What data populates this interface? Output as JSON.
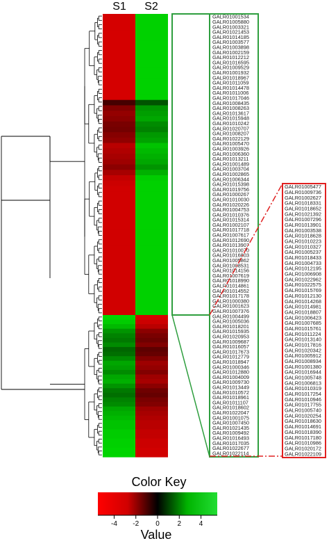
{
  "chart_data": {
    "type": "heatmap",
    "columns": [
      "S1",
      "S2"
    ],
    "series": [
      {
        "values": [
          -4.5,
          4.5
        ]
      },
      {
        "values": [
          -4.0,
          4.0
        ]
      }
    ],
    "legend": {
      "title": "Color Key",
      "xlabel": "Value",
      "ticks": [
        -4,
        -2,
        0,
        2,
        4
      ],
      "range": [
        -5.5,
        5.5
      ],
      "colors": {
        "low": "#ff0000",
        "mid": "#000000",
        "high": "#00ff00"
      }
    },
    "upper_cluster_genes": [
      "GALR01001534",
      "GALR01005880",
      "GALR01003321",
      "GALR01021453",
      "GALR01014185",
      "GALR01003577",
      "GALR01003898",
      "GALR01002159",
      "GALR01012212",
      "GALR01016595",
      "GALR01009529",
      "GALR01001932",
      "GALR01018967",
      "GALR01011059",
      "GALR01014478",
      "GALR01011006",
      "GALR01017046",
      "GALR01008435",
      "GALR01008263",
      "GALR01013617",
      "GALR01015948",
      "GALR01010242",
      "GALR01020707",
      "GALR01008207",
      "GALR01022129",
      "GALR01005470",
      "GALR01003926",
      "GALR01006360",
      "GALR01013211",
      "GALR01001489",
      "GALR01003704",
      "GALR01002865",
      "GALR01006344",
      "GALR01015398",
      "GALR01019756",
      "GALR01000267",
      "GALR01010030",
      "GALR01020226",
      "GALR01004753",
      "GALR01010376",
      "GALR01015314",
      "GALR01002107",
      "GALR01017718",
      "GALR01007617",
      "GALR01012690",
      "GALR01013907",
      "GALR01010070",
      "GALR01016803",
      "GALR01005862",
      "GALR01008531",
      "GALR01014156",
      "GALR01007619",
      "GALR01018990",
      "GALR01014861",
      "GALR01014552",
      "GALR01017178"
    ],
    "lower_cluster_genes": [
      "GALR01005477",
      "GALR01009736",
      "GALR01002627",
      "GALR01018331",
      "GALR01018652",
      "GALR01021392",
      "GALR01007296",
      "GALR01013901",
      "GALR01003538",
      "GALR01018628",
      "GALR01010223",
      "GALR01010327",
      "GALR01005237",
      "GALR01018433",
      "GALR01004733",
      "GALR01012195",
      "GALR01006908",
      "GALR01022962",
      "GALR01022575",
      "GALR01015769",
      "GALR01012130",
      "GALR01014268",
      "GALR01014981",
      "GALR01018807",
      "GALR01006423",
      "GALR01007685",
      "GALR01015761",
      "GALR01011224",
      "GALR01013140",
      "GALR01017816",
      "GALR01020342",
      "GALR01005912",
      "GALR01008934",
      "GALR01001380",
      "GALR01016944",
      "GALR01005748",
      "GALR01006813",
      "GALR01010319",
      "GALR01017254",
      "GALR01010946",
      "GALR01017755",
      "GALR01005740",
      "GALR01020254",
      "GALR01018630",
      "GALR01014691",
      "GALR01018390",
      "GALR01017180",
      "GALR01010986",
      "GALR01020172",
      "GALR01022109"
    ],
    "lower_cluster_row_labels": [
      "GALR01000380",
      "GALR01001623",
      "GALR01007376",
      "GALR01004499",
      "GALR01005036",
      "GALR01018201",
      "GALR01015935",
      "GALR01020953",
      "GALR01009687",
      "GALR01016057",
      "GALR01017673",
      "GALR01012779",
      "GALR01018947",
      "GALR01000346",
      "GALR01012880",
      "GALR01004009",
      "GALR01009730",
      "GALR01013449",
      "GALR01010572",
      "GALR01018961",
      "GALR01011107",
      "GALR01018602",
      "GALR01022047",
      "GALR01001075",
      "GALR01007450",
      "GALR01021435",
      "GALR01009492",
      "GALR01016493",
      "GALR01017035",
      "GALR01022677",
      "GALR01022114"
    ],
    "upper_cluster_row_values": [
      [
        -4.6,
        4.5
      ],
      [
        -4.6,
        4.5
      ],
      [
        -4.6,
        4.5
      ],
      [
        -4.6,
        4.5
      ],
      [
        -4.6,
        4.5
      ],
      [
        -4.6,
        4.5
      ],
      [
        -4.6,
        4.5
      ],
      [
        -4.6,
        4.5
      ],
      [
        -4.6,
        4.5
      ],
      [
        -4.6,
        4.5
      ],
      [
        -4.6,
        4.5
      ],
      [
        -4.6,
        4.5
      ],
      [
        -4.6,
        4.5
      ],
      [
        -4.6,
        4.5
      ],
      [
        -4.6,
        4.5
      ],
      [
        -4.6,
        4.5
      ],
      [
        -1.5,
        1.8
      ],
      [
        -2.8,
        3.2
      ],
      [
        -3.2,
        3.4
      ],
      [
        -3.0,
        3.6
      ],
      [
        -2.6,
        3.0
      ],
      [
        -2.5,
        2.8
      ],
      [
        -2.9,
        3.3
      ],
      [
        -3.1,
        3.5
      ],
      [
        -4.0,
        4.2
      ],
      [
        -3.8,
        4.0
      ],
      [
        -3.6,
        3.8
      ],
      [
        -3.4,
        3.6
      ],
      [
        -3.0,
        3.2
      ],
      [
        -3.6,
        3.8
      ],
      [
        -4.2,
        4.4
      ],
      [
        -4.4,
        4.5
      ],
      [
        -4.5,
        4.5
      ],
      [
        -4.5,
        4.5
      ],
      [
        -4.5,
        4.5
      ],
      [
        -4.5,
        4.5
      ],
      [
        -4.5,
        4.5
      ],
      [
        -4.5,
        4.5
      ],
      [
        -4.5,
        4.5
      ],
      [
        -4.5,
        4.5
      ],
      [
        -4.5,
        4.5
      ],
      [
        -4.5,
        4.5
      ],
      [
        -4.5,
        4.5
      ],
      [
        -4.5,
        4.5
      ],
      [
        -4.5,
        4.5
      ],
      [
        -4.5,
        4.5
      ],
      [
        -4.5,
        4.5
      ],
      [
        -4.5,
        4.5
      ],
      [
        -4.5,
        4.5
      ],
      [
        -4.5,
        4.5
      ],
      [
        -4.5,
        4.5
      ],
      [
        -4.5,
        4.5
      ],
      [
        -4.5,
        4.5
      ],
      [
        -4.5,
        4.5
      ],
      [
        -4.5,
        4.5
      ],
      [
        -4.5,
        4.5
      ]
    ],
    "lower_cluster_row_values": [
      [
        4.6,
        -4.6
      ],
      [
        4.4,
        -4.4
      ],
      [
        4.0,
        -4.0
      ],
      [
        3.2,
        -3.0
      ],
      [
        2.8,
        -2.6
      ],
      [
        2.6,
        -2.4
      ],
      [
        3.0,
        -2.8
      ],
      [
        2.2,
        -2.0
      ],
      [
        2.4,
        -2.2
      ],
      [
        3.0,
        -2.8
      ],
      [
        3.6,
        -3.4
      ],
      [
        3.4,
        -3.2
      ],
      [
        3.0,
        -2.8
      ],
      [
        3.6,
        -3.4
      ],
      [
        3.8,
        -3.6
      ],
      [
        3.2,
        -3.0
      ],
      [
        2.6,
        -2.4
      ],
      [
        2.4,
        -2.2
      ],
      [
        2.8,
        -2.6
      ],
      [
        3.0,
        -2.8
      ],
      [
        3.6,
        -3.4
      ],
      [
        3.8,
        -3.6
      ],
      [
        4.0,
        -3.8
      ],
      [
        4.2,
        -4.0
      ],
      [
        4.2,
        -4.0
      ],
      [
        4.4,
        -4.2
      ],
      [
        4.4,
        -4.2
      ],
      [
        4.5,
        -4.4
      ],
      [
        4.5,
        -4.4
      ],
      [
        4.6,
        -4.5
      ],
      [
        4.6,
        -4.5
      ]
    ]
  }
}
